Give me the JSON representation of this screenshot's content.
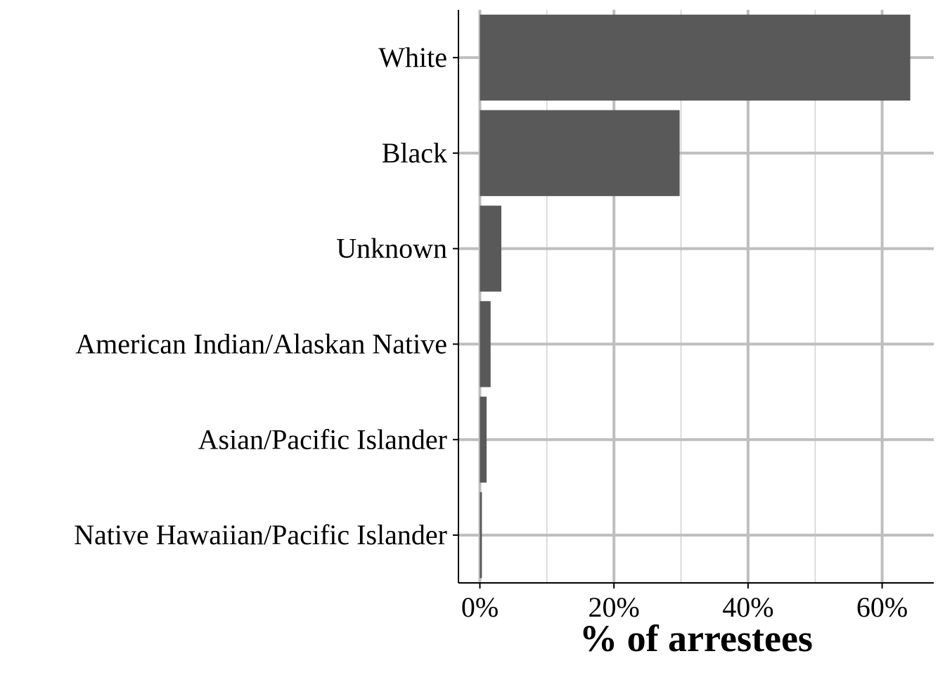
{
  "chart_data": {
    "type": "bar",
    "orientation": "horizontal",
    "categories": [
      "White",
      "Black",
      "Unknown",
      "American Indian/Alaskan Native",
      "Asian/Pacific Islander",
      "Native Hawaiian/Pacific Islander"
    ],
    "values": [
      64.2,
      29.8,
      3.2,
      1.6,
      1.0,
      0.3
    ],
    "value_unit": "%",
    "xlabel": "% of arrestees",
    "ylabel": "",
    "xlim": [
      -3.2,
      67.7
    ],
    "x_ticks": [
      "0%",
      "20%",
      "40%",
      "60%"
    ],
    "x_tick_values": [
      0,
      20,
      40,
      60
    ],
    "x_minor_tick_values": [
      10,
      30,
      50
    ],
    "grid": true,
    "legend": "none",
    "colors": {
      "bar": "#595959",
      "grid": "#bebebe",
      "axis": "#000000"
    }
  }
}
